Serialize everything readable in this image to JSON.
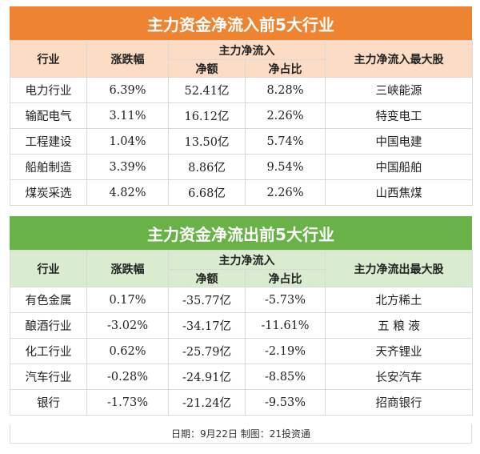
{
  "inflow": {
    "title": "主力资金净流入前5大行业",
    "headers": {
      "industry": "行业",
      "change": "涨跌幅",
      "main_fund": "主力净流入",
      "net": "净额",
      "ratio": "净占比",
      "top_stock": "主力净流入最大股"
    },
    "rows": [
      {
        "industry": "电力行业",
        "change": "6.39%",
        "net": "52.41亿",
        "ratio": "8.28%",
        "stock": "三峡能源"
      },
      {
        "industry": "输配电气",
        "change": "3.11%",
        "net": "16.12亿",
        "ratio": "2.26%",
        "stock": "特变电工"
      },
      {
        "industry": "工程建设",
        "change": "1.04%",
        "net": "13.50亿",
        "ratio": "5.74%",
        "stock": "中国电建"
      },
      {
        "industry": "船舶制造",
        "change": "3.39%",
        "net": "8.86亿",
        "ratio": "9.54%",
        "stock": "中国船舶"
      },
      {
        "industry": "煤炭采选",
        "change": "4.82%",
        "net": "6.68亿",
        "ratio": "2.26%",
        "stock": "山西焦煤"
      }
    ]
  },
  "outflow": {
    "title": "主力资金净流出前5大行业",
    "headers": {
      "industry": "行业",
      "change": "涨跌幅",
      "main_fund": "主力净流入",
      "net": "净额",
      "ratio": "净占比",
      "top_stock": "主力净流出最大股"
    },
    "rows": [
      {
        "industry": "有色金属",
        "change": "0.17%",
        "net": "-35.77亿",
        "ratio": "-5.73%",
        "stock": "北方稀土"
      },
      {
        "industry": "酿酒行业",
        "change": "-3.02%",
        "net": "-34.17亿",
        "ratio": "-11.61%",
        "stock": "五 粮 液"
      },
      {
        "industry": "化工行业",
        "change": "0.62%",
        "net": "-25.79亿",
        "ratio": "-2.19%",
        "stock": "天齐锂业"
      },
      {
        "industry": "汽车行业",
        "change": "-0.28%",
        "net": "-24.91亿",
        "ratio": "-8.85%",
        "stock": "长安汽车"
      },
      {
        "industry": "银行",
        "change": "-1.73%",
        "net": "-21.24亿",
        "ratio": "-9.53%",
        "stock": "招商银行"
      }
    ]
  },
  "footer": "日期：9月22日  制图：21投资通",
  "colors": {
    "orange": "#ee8431",
    "green": "#68b247",
    "orange_header": "#fcdcc4",
    "green_header": "#d9ecd0"
  }
}
